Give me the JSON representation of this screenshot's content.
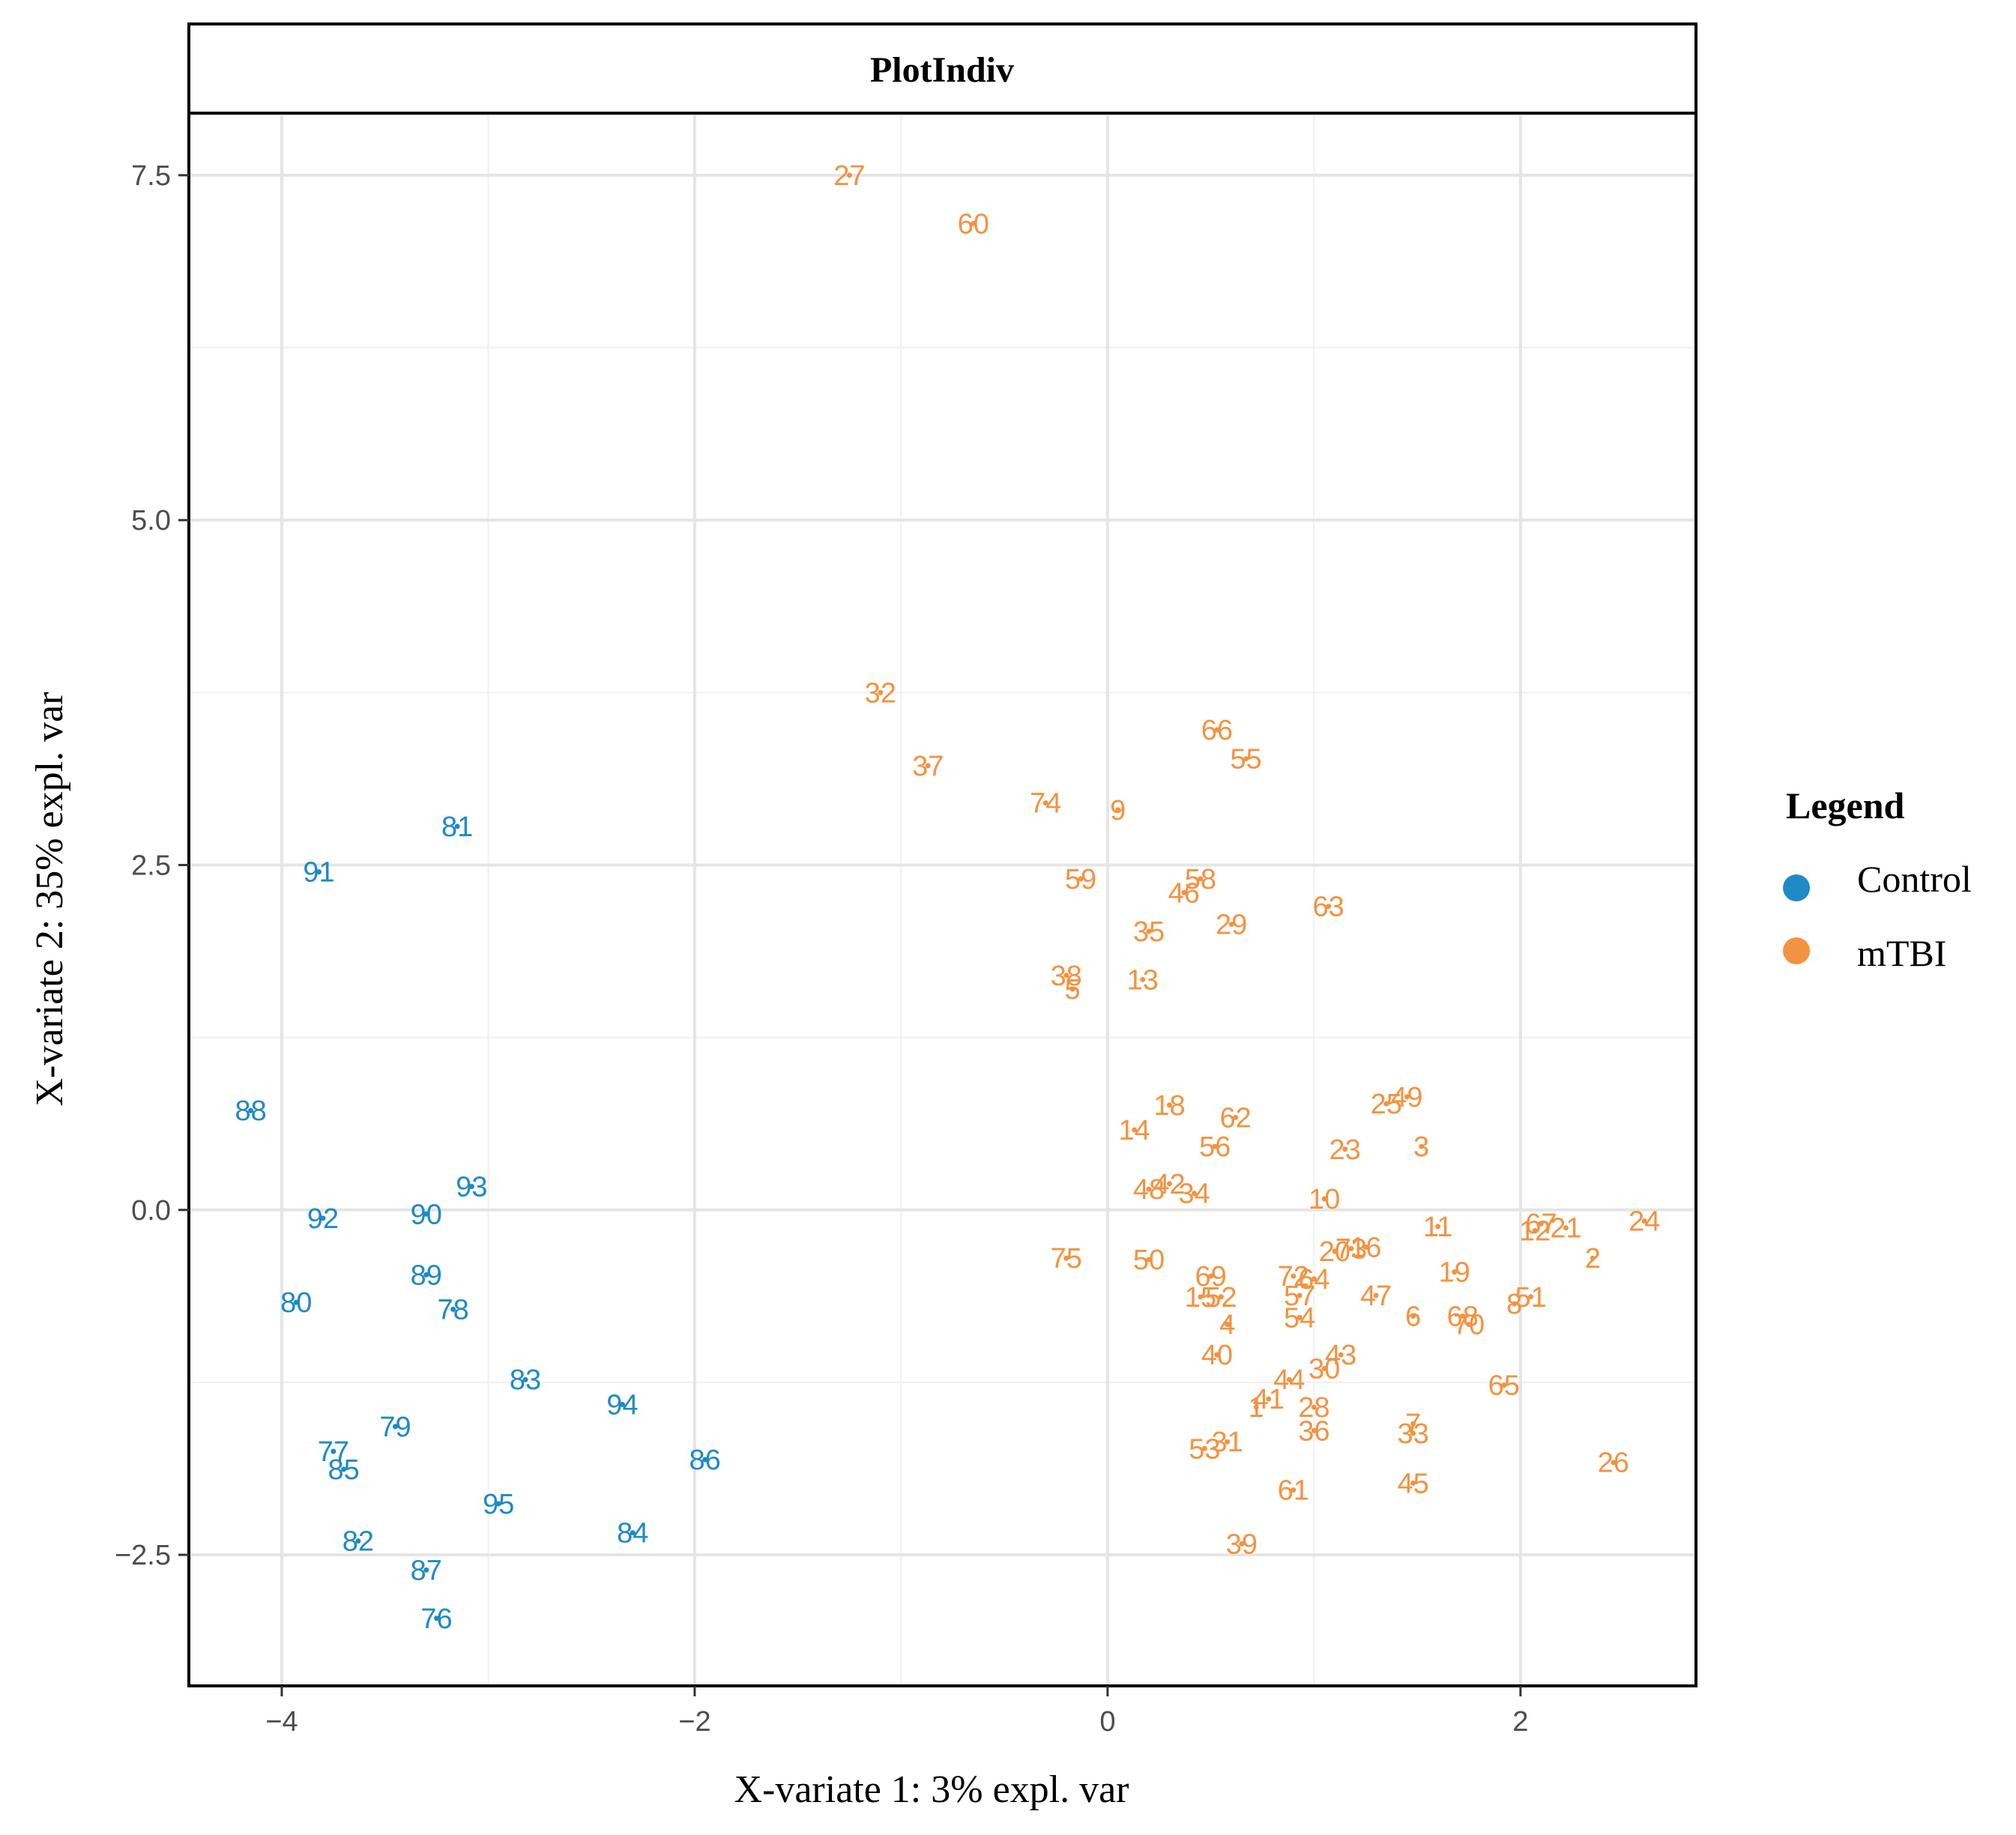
{
  "chart_data": {
    "type": "scatter",
    "title": "PlotIndiv",
    "xlabel": "X-variate 1: 3% expl. var",
    "ylabel": "X-variate 2: 35% expl. var",
    "xlim": [
      -4.45,
      2.85
    ],
    "ylim": [
      -3.45,
      7.95
    ],
    "xticks": [
      -4,
      -2,
      0,
      2
    ],
    "xtick_labels": [
      "−4",
      "−2",
      "0",
      "2"
    ],
    "yticks": [
      -2.5,
      0,
      2.5,
      5,
      7.5
    ],
    "ytick_labels": [
      "−2.5",
      "0.0",
      "2.5",
      "5.0",
      "7.5"
    ],
    "grid": true,
    "legend": {
      "title": "Legend",
      "position": "right",
      "entries": [
        {
          "name": "Control",
          "color": "#1f8ac5"
        },
        {
          "name": "mTBI",
          "color": "#f39341"
        }
      ]
    },
    "series": [
      {
        "name": "Control",
        "color": "#1f8ac5",
        "points": [
          {
            "label": "81",
            "x": -3.15,
            "y": 2.78
          },
          {
            "label": "91",
            "x": -3.82,
            "y": 2.45
          },
          {
            "label": "88",
            "x": -4.15,
            "y": 0.72
          },
          {
            "label": "93",
            "x": -3.08,
            "y": 0.17
          },
          {
            "label": "92",
            "x": -3.8,
            "y": -0.06
          },
          {
            "label": "90",
            "x": -3.3,
            "y": -0.03
          },
          {
            "label": "89",
            "x": -3.3,
            "y": -0.47
          },
          {
            "label": "80",
            "x": -3.93,
            "y": -0.67
          },
          {
            "label": "78",
            "x": -3.17,
            "y": -0.72
          },
          {
            "label": "83",
            "x": -2.82,
            "y": -1.23
          },
          {
            "label": "94",
            "x": -2.35,
            "y": -1.41
          },
          {
            "label": "79",
            "x": -3.45,
            "y": -1.57
          },
          {
            "label": "77",
            "x": -3.75,
            "y": -1.75
          },
          {
            "label": "85",
            "x": -3.7,
            "y": -1.88
          },
          {
            "label": "86",
            "x": -1.95,
            "y": -1.81
          },
          {
            "label": "95",
            "x": -2.95,
            "y": -2.13
          },
          {
            "label": "84",
            "x": -2.3,
            "y": -2.34
          },
          {
            "label": "82",
            "x": -3.63,
            "y": -2.4
          },
          {
            "label": "87",
            "x": -3.3,
            "y": -2.61
          },
          {
            "label": "76",
            "x": -3.25,
            "y": -2.96
          }
        ]
      },
      {
        "name": "mTBI",
        "color": "#f39341",
        "points": [
          {
            "label": "27",
            "x": -1.25,
            "y": 7.5
          },
          {
            "label": "60",
            "x": -0.65,
            "y": 7.15
          },
          {
            "label": "32",
            "x": -1.1,
            "y": 3.75
          },
          {
            "label": "37",
            "x": -0.87,
            "y": 3.22
          },
          {
            "label": "74",
            "x": -0.3,
            "y": 2.95
          },
          {
            "label": "9",
            "x": 0.05,
            "y": 2.9
          },
          {
            "label": "66",
            "x": 0.53,
            "y": 3.48
          },
          {
            "label": "55",
            "x": 0.67,
            "y": 3.27
          },
          {
            "label": "59",
            "x": -0.13,
            "y": 2.4
          },
          {
            "label": "58",
            "x": 0.45,
            "y": 2.4
          },
          {
            "label": "46",
            "x": 0.37,
            "y": 2.3
          },
          {
            "label": "63",
            "x": 1.07,
            "y": 2.2
          },
          {
            "label": "35",
            "x": 0.2,
            "y": 2.02
          },
          {
            "label": "29",
            "x": 0.6,
            "y": 2.07
          },
          {
            "label": "38",
            "x": -0.2,
            "y": 1.7
          },
          {
            "label": "5",
            "x": -0.17,
            "y": 1.6
          },
          {
            "label": "13",
            "x": 0.17,
            "y": 1.67
          },
          {
            "label": "49",
            "x": 1.45,
            "y": 0.82
          },
          {
            "label": "25",
            "x": 1.35,
            "y": 0.77
          },
          {
            "label": "18",
            "x": 0.3,
            "y": 0.76
          },
          {
            "label": "62",
            "x": 0.62,
            "y": 0.67
          },
          {
            "label": "14",
            "x": 0.13,
            "y": 0.58
          },
          {
            "label": "56",
            "x": 0.52,
            "y": 0.46
          },
          {
            "label": "23",
            "x": 1.15,
            "y": 0.44
          },
          {
            "label": "3",
            "x": 1.52,
            "y": 0.46
          },
          {
            "label": "42",
            "x": 0.3,
            "y": 0.19
          },
          {
            "label": "48",
            "x": 0.2,
            "y": 0.15
          },
          {
            "label": "34",
            "x": 0.42,
            "y": 0.12
          },
          {
            "label": "10",
            "x": 1.05,
            "y": 0.08
          },
          {
            "label": "11",
            "x": 1.6,
            "y": -0.12
          },
          {
            "label": "67",
            "x": 2.1,
            "y": -0.1
          },
          {
            "label": "12",
            "x": 2.07,
            "y": -0.15
          },
          {
            "label": "21",
            "x": 2.22,
            "y": -0.13
          },
          {
            "label": "24",
            "x": 2.6,
            "y": -0.08
          },
          {
            "label": "20",
            "x": 1.1,
            "y": -0.3
          },
          {
            "label": "73",
            "x": 1.18,
            "y": -0.28
          },
          {
            "label": "16",
            "x": 1.25,
            "y": -0.27
          },
          {
            "label": "2",
            "x": 2.35,
            "y": -0.35
          },
          {
            "label": "75",
            "x": -0.2,
            "y": -0.35
          },
          {
            "label": "50",
            "x": 0.2,
            "y": -0.36
          },
          {
            "label": "19",
            "x": 1.68,
            "y": -0.45
          },
          {
            "label": "69",
            "x": 0.5,
            "y": -0.48
          },
          {
            "label": "72",
            "x": 0.9,
            "y": -0.48
          },
          {
            "label": "64",
            "x": 1.0,
            "y": -0.5
          },
          {
            "label": "15",
            "x": 0.45,
            "y": -0.63
          },
          {
            "label": "52",
            "x": 0.55,
            "y": -0.63
          },
          {
            "label": "57",
            "x": 0.93,
            "y": -0.62
          },
          {
            "label": "47",
            "x": 1.3,
            "y": -0.62
          },
          {
            "label": "51",
            "x": 2.05,
            "y": -0.63
          },
          {
            "label": "8",
            "x": 1.97,
            "y": -0.68
          },
          {
            "label": "6",
            "x": 1.48,
            "y": -0.77
          },
          {
            "label": "54",
            "x": 0.93,
            "y": -0.78
          },
          {
            "label": "4",
            "x": 0.58,
            "y": -0.83
          },
          {
            "label": "68",
            "x": 1.72,
            "y": -0.77
          },
          {
            "label": "70",
            "x": 1.75,
            "y": -0.83
          },
          {
            "label": "40",
            "x": 0.53,
            "y": -1.05
          },
          {
            "label": "43",
            "x": 1.13,
            "y": -1.05
          },
          {
            "label": "30",
            "x": 1.05,
            "y": -1.15
          },
          {
            "label": "44",
            "x": 0.88,
            "y": -1.23
          },
          {
            "label": "65",
            "x": 1.92,
            "y": -1.27
          },
          {
            "label": "41",
            "x": 0.78,
            "y": -1.37
          },
          {
            "label": "1",
            "x": 0.72,
            "y": -1.43
          },
          {
            "label": "28",
            "x": 1.0,
            "y": -1.43
          },
          {
            "label": "7",
            "x": 1.48,
            "y": -1.55
          },
          {
            "label": "36",
            "x": 1.0,
            "y": -1.6
          },
          {
            "label": "33",
            "x": 1.48,
            "y": -1.62
          },
          {
            "label": "31",
            "x": 0.58,
            "y": -1.68
          },
          {
            "label": "53",
            "x": 0.47,
            "y": -1.73
          },
          {
            "label": "26",
            "x": 2.45,
            "y": -1.83
          },
          {
            "label": "45",
            "x": 1.48,
            "y": -1.98
          },
          {
            "label": "61",
            "x": 0.9,
            "y": -2.03
          },
          {
            "label": "39",
            "x": 0.65,
            "y": -2.42
          }
        ]
      }
    ]
  }
}
